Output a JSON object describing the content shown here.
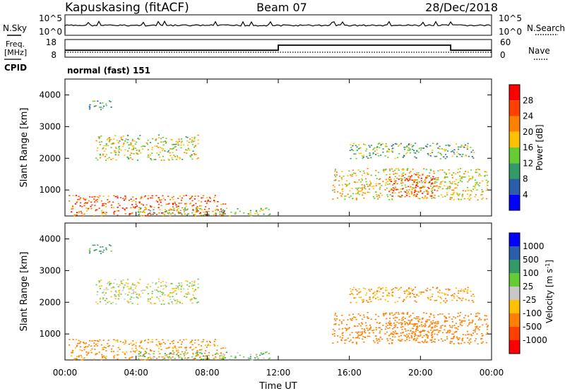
{
  "header": {
    "station": "Kapuskasing (fitACF)",
    "beam": "Beam 07",
    "date": "28/Dec/2018"
  },
  "noise_panel": {
    "left_label": "N.Sky",
    "right_label": "N.Search",
    "ticks_left": [
      "10^5",
      "10^0"
    ],
    "ticks_right": [
      "10^5",
      "10^0"
    ]
  },
  "freq_panel": {
    "left_label_1": "Freq.",
    "left_label_2": "[MHz]",
    "right_label": "Nave",
    "ticks_left": [
      "18",
      "8"
    ],
    "ticks_right": [
      "60",
      "0"
    ],
    "cpid_label": "CPID",
    "mode": "normal (fast) 151",
    "freq_series": {
      "x_hours": [
        0,
        24
      ],
      "y_mhz": [
        10.5,
        10.5
      ]
    },
    "nave_series": {
      "x_hours": [
        0,
        12,
        12,
        21.7,
        21.7,
        24
      ],
      "y": [
        22,
        22,
        40,
        40,
        22,
        22
      ]
    }
  },
  "chart_data": [
    {
      "type": "heatmap",
      "ylabel": "Slant Range [km]",
      "xlim": [
        0,
        24
      ],
      "ylim": [
        180,
        4500
      ],
      "yticks": [
        "1000",
        "2000",
        "3000",
        "4000"
      ],
      "colorbar": {
        "label": "Power [dB]",
        "ticks": [
          "28",
          "24",
          "20",
          "16",
          "12",
          "8",
          "4"
        ],
        "colors": [
          "#ff0000",
          "#ff4000",
          "#ff8000",
          "#ffc000",
          "#66cc33",
          "#339966",
          "#2a5ea8",
          "#0000ff"
        ]
      },
      "echo_regions": [
        {
          "t0": 1.7,
          "t1": 7.5,
          "r0": 1950,
          "r1": 2750,
          "value": 14
        },
        {
          "t0": 1.3,
          "t1": 2.6,
          "r0": 3550,
          "r1": 3850,
          "value": 8
        },
        {
          "t0": 0.2,
          "t1": 9.0,
          "r0": 200,
          "r1": 850,
          "value": 22
        },
        {
          "t0": 4.0,
          "t1": 11.5,
          "r0": 200,
          "r1": 450,
          "value": 12
        },
        {
          "t0": 15.0,
          "t1": 23.8,
          "r0": 700,
          "r1": 1700,
          "value": 16
        },
        {
          "t0": 18.2,
          "t1": 20.8,
          "r0": 800,
          "r1": 1500,
          "value": 24
        },
        {
          "t0": 16.0,
          "t1": 23.0,
          "r0": 2000,
          "r1": 2500,
          "value": 10
        }
      ]
    },
    {
      "type": "heatmap",
      "xlabel": "Time UT",
      "ylabel": "Slant Range [km]",
      "xlim": [
        0,
        24
      ],
      "ylim": [
        180,
        4500
      ],
      "yticks": [
        "1000",
        "2000",
        "3000",
        "4000"
      ],
      "xticks": [
        "00:00",
        "04:00",
        "08:00",
        "12:00",
        "16:00",
        "20:00",
        "00:00"
      ],
      "colorbar": {
        "label": "Velocity [m s",
        "label_sup": "-1",
        "label_close": "]",
        "ticks": [
          "1000",
          "500",
          "100",
          "25",
          "-25",
          "-100",
          "-500",
          "-1000"
        ],
        "colors": [
          "#0000ff",
          "#2a5ea8",
          "#339966",
          "#66cc33",
          "#c8c8c8",
          "#ffc000",
          "#ff8000",
          "#ff4000",
          "#ff0000"
        ]
      },
      "echo_regions": [
        {
          "t0": 1.7,
          "t1": 7.5,
          "r0": 1950,
          "r1": 2750,
          "value": 0
        },
        {
          "t0": 1.3,
          "t1": 2.6,
          "r0": 3550,
          "r1": 3850,
          "value": 150
        },
        {
          "t0": 0.2,
          "t1": 9.0,
          "r0": 200,
          "r1": 850,
          "value": -150
        },
        {
          "t0": 4.0,
          "t1": 11.5,
          "r0": 200,
          "r1": 450,
          "value": 60
        },
        {
          "t0": 15.0,
          "t1": 23.8,
          "r0": 700,
          "r1": 1700,
          "value": -200
        },
        {
          "t0": 18.2,
          "t1": 20.8,
          "r0": 800,
          "r1": 1500,
          "value": -300
        },
        {
          "t0": 16.0,
          "t1": 23.0,
          "r0": 2000,
          "r1": 2500,
          "value": -120
        }
      ]
    }
  ]
}
